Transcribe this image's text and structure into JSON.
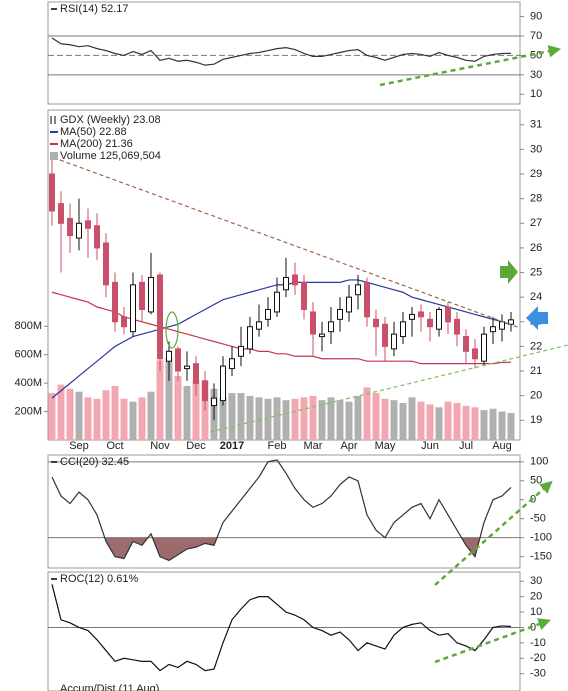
{
  "chart_data": [
    {
      "type": "line",
      "title": "RSI(14) 52.17",
      "color": "#333333",
      "values": [
        68,
        62,
        61,
        59,
        60,
        57,
        55,
        52,
        50,
        54,
        51,
        55,
        45,
        47,
        44,
        45,
        43,
        40,
        41,
        46,
        48,
        50,
        52,
        53,
        55,
        57,
        58,
        56,
        52,
        49,
        49,
        51,
        53,
        55,
        56,
        50,
        48,
        45,
        48,
        51,
        52,
        51,
        49,
        53,
        50,
        48,
        45,
        44,
        49,
        51,
        52,
        52.17
      ],
      "ylim": [
        0,
        105
      ],
      "yticks": [
        90,
        70,
        50,
        30,
        10
      ],
      "hlines": [
        70,
        30
      ],
      "dashed_hlines": [
        50
      ]
    },
    {
      "type": "candlestick",
      "title": "GDX (Weekly) 23.08",
      "categories": [
        null,
        null,
        null,
        "Sep",
        null,
        null,
        null,
        "Oct",
        null,
        null,
        null,
        null,
        "Nov",
        null,
        null,
        null,
        "Dec",
        null,
        null,
        null,
        "2017",
        null,
        null,
        null,
        null,
        "Feb",
        null,
        null,
        null,
        "Mar",
        null,
        null,
        null,
        "Apr",
        null,
        null,
        null,
        "May",
        null,
        null,
        null,
        null,
        "Jun",
        null,
        null,
        null,
        "Jul",
        null,
        null,
        null,
        "Aug",
        null
      ],
      "open": [
        29.0,
        27.8,
        27.2,
        26.4,
        27.1,
        26.9,
        26.2,
        24.6,
        23.2,
        22.6,
        24.6,
        23.4,
        24.9,
        21.4,
        21.9,
        21.1,
        21.3,
        20.6,
        19.6,
        19.8,
        21.1,
        21.6,
        21.9,
        22.7,
        23.1,
        23.4,
        24.3,
        24.9,
        24.6,
        23.4,
        22.4,
        22.6,
        23.1,
        23.4,
        24.1,
        24.6,
        23.1,
        22.9,
        21.9,
        22.4,
        23.1,
        23.4,
        23.1,
        22.7,
        23.6,
        23.1,
        22.4,
        21.9,
        21.4,
        22.6,
        22.7,
        22.9
      ],
      "high": [
        29.7,
        28.3,
        27.8,
        28.0,
        27.6,
        27.4,
        26.6,
        25.0,
        23.6,
        25.0,
        24.9,
        25.8,
        25.0,
        22.2,
        22.0,
        21.8,
        21.6,
        21.0,
        20.5,
        21.6,
        22.0,
        22.8,
        23.2,
        23.7,
        24.0,
        24.8,
        25.6,
        25.4,
        24.9,
        23.8,
        23.0,
        23.6,
        24.0,
        24.5,
        24.9,
        24.8,
        23.5,
        23.2,
        23.0,
        23.4,
        23.6,
        23.7,
        23.4,
        23.6,
        23.8,
        23.4,
        22.7,
        22.3,
        22.8,
        23.2,
        23.3,
        23.4
      ],
      "low": [
        26.9,
        25.0,
        25.8,
        25.9,
        25.6,
        25.5,
        24.0,
        22.6,
        22.5,
        22.4,
        23.0,
        23.3,
        21.0,
        20.6,
        20.6,
        20.6,
        20.0,
        19.4,
        19.0,
        19.6,
        20.8,
        21.2,
        21.7,
        22.4,
        22.8,
        23.2,
        24.0,
        24.1,
        23.1,
        21.6,
        21.8,
        22.1,
        22.6,
        23.0,
        23.5,
        22.8,
        21.6,
        21.4,
        21.6,
        22.1,
        22.4,
        22.6,
        22.2,
        22.4,
        22.5,
        22.0,
        21.3,
        21.1,
        21.2,
        22.1,
        22.2,
        22.6
      ],
      "close": [
        27.5,
        27.0,
        26.5,
        27.0,
        26.8,
        26.0,
        24.5,
        23.0,
        22.8,
        24.5,
        23.5,
        24.8,
        21.5,
        21.8,
        21.0,
        21.2,
        20.5,
        19.8,
        19.9,
        21.2,
        21.5,
        22.0,
        22.8,
        23.0,
        23.5,
        24.2,
        24.8,
        24.5,
        23.5,
        22.5,
        22.5,
        23.0,
        23.5,
        24.0,
        24.5,
        23.2,
        22.8,
        22.0,
        22.5,
        23.0,
        23.3,
        23.2,
        22.8,
        23.5,
        23.0,
        22.5,
        21.8,
        21.5,
        22.5,
        22.8,
        23.0,
        23.08
      ],
      "up_color": "#111111",
      "down_color": "#c8506a",
      "series": [
        {
          "name": "MA(50) 22.88",
          "color": "#2b3a9e",
          "values": [
            19.9,
            20.2,
            20.5,
            20.8,
            21.1,
            21.4,
            21.7,
            22.0,
            22.2,
            22.4,
            22.5,
            22.6,
            22.7,
            22.8,
            22.9,
            23.1,
            23.3,
            23.5,
            23.7,
            23.9,
            24.0,
            24.1,
            24.2,
            24.3,
            24.4,
            24.5,
            24.5,
            24.6,
            24.6,
            24.6,
            24.6,
            24.6,
            24.6,
            24.7,
            24.7,
            24.6,
            24.5,
            24.4,
            24.3,
            24.2,
            24.0,
            23.9,
            23.8,
            23.7,
            23.6,
            23.5,
            23.4,
            23.3,
            23.2,
            23.1,
            23.0,
            22.88
          ]
        },
        {
          "name": "MA(200) 21.36",
          "color": "#c8344a",
          "values": [
            24.2,
            24.1,
            24.0,
            23.9,
            23.8,
            23.6,
            23.5,
            23.4,
            23.2,
            23.1,
            23.0,
            22.9,
            22.8,
            22.7,
            22.6,
            22.5,
            22.4,
            22.3,
            22.2,
            22.1,
            22.0,
            21.9,
            21.9,
            21.8,
            21.8,
            21.7,
            21.7,
            21.6,
            21.6,
            21.6,
            21.5,
            21.5,
            21.5,
            21.5,
            21.5,
            21.4,
            21.4,
            21.4,
            21.4,
            21.4,
            21.4,
            21.3,
            21.3,
            21.3,
            21.3,
            21.3,
            21.3,
            21.3,
            21.3,
            21.3,
            21.35,
            21.36
          ]
        }
      ],
      "ylim": [
        18.2,
        31.6
      ],
      "yticks": [
        31,
        30,
        29,
        28,
        27,
        26,
        25,
        24,
        23,
        22,
        21,
        20,
        19
      ],
      "volume": {
        "name": "Volume 125,069,504",
        "up_color": "#b0b0b0",
        "down_color": "#f2a7b2",
        "values": [
          330,
          390,
          360,
          340,
          300,
          290,
          350,
          380,
          290,
          270,
          300,
          340,
          560,
          580,
          450,
          380,
          420,
          420,
          360,
          300,
          330,
          330,
          310,
          300,
          290,
          300,
          280,
          290,
          300,
          310,
          280,
          300,
          280,
          270,
          310,
          370,
          330,
          290,
          280,
          260,
          300,
          270,
          250,
          230,
          270,
          260,
          240,
          230,
          210,
          220,
          200,
          190
        ],
        "ylim": [
          0,
          2321
        ],
        "yticks": [
          {
            "value": 800,
            "label": "800M"
          },
          {
            "value": 600,
            "label": "600M"
          },
          {
            "value": 400,
            "label": "400M"
          },
          {
            "value": 200,
            "label": "200M"
          }
        ]
      }
    },
    {
      "type": "line",
      "title": "CCI(20) 32.45",
      "color": "#333333",
      "values": [
        60,
        10,
        -10,
        20,
        0,
        -40,
        -110,
        -150,
        -155,
        -110,
        -120,
        -90,
        -150,
        -160,
        -145,
        -130,
        -125,
        -115,
        -120,
        -60,
        -30,
        0,
        30,
        60,
        100,
        105,
        70,
        30,
        0,
        -20,
        -10,
        10,
        40,
        60,
        50,
        -40,
        -80,
        -100,
        -60,
        -40,
        -20,
        -10,
        -50,
        0,
        -40,
        -80,
        -120,
        -150,
        -60,
        0,
        10,
        32.45
      ],
      "ylim": [
        -180,
        118
      ],
      "yticks": [
        100,
        50,
        0,
        -50,
        -100,
        -150
      ],
      "hlines": [
        100,
        -100
      ],
      "fill_below": -100,
      "fill_color": "#9c6b6b"
    },
    {
      "type": "line",
      "title": "ROC(12) 0.61%",
      "color": "#111111",
      "values": [
        28,
        5,
        3,
        0,
        -2,
        -8,
        -15,
        -22,
        -20,
        -21,
        -22,
        -22,
        -28,
        -24,
        -26,
        -22,
        -24,
        -28,
        -27,
        -10,
        5,
        12,
        18,
        20,
        20,
        15,
        10,
        8,
        5,
        0,
        -2,
        -5,
        -3,
        -8,
        -15,
        -10,
        -12,
        -14,
        -5,
        0,
        2,
        3,
        -2,
        -5,
        -4,
        -10,
        -12,
        -15,
        -8,
        0,
        1,
        0.61
      ],
      "ylim": [
        -38,
        36
      ],
      "yticks": [
        30,
        20,
        10,
        0,
        -10,
        -20,
        -30
      ],
      "hlines": [
        0
      ]
    },
    {
      "type": "caption",
      "title": "Accum/Dist (11 Aug)"
    }
  ]
}
